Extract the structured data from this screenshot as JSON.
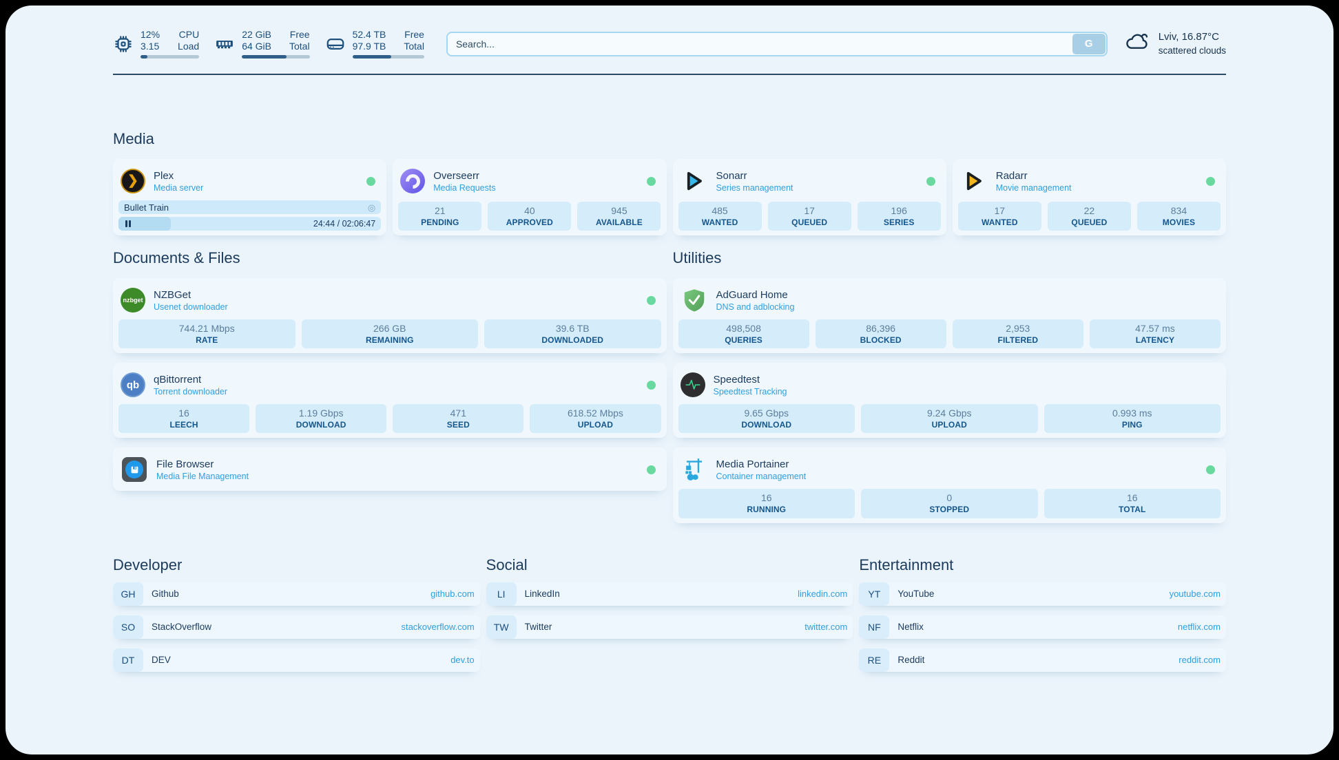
{
  "colors": {
    "accent": "#2f9ee2",
    "online_dot": "#69d9a0",
    "page_bg": "#ebf4fb",
    "card_bg": "#f1f8fd",
    "stat_pill_bg": "#d5ecfa"
  },
  "topbar": {
    "cpu": {
      "value_top": "12%",
      "value_bottom": "3.15",
      "label_top": "CPU",
      "label_bottom": "Load",
      "progress": 12
    },
    "ram": {
      "value_top": "22 GiB",
      "value_bottom": "64 GiB",
      "label_top": "Free",
      "label_bottom": "Total",
      "progress": 66
    },
    "disk": {
      "value_top": "52.4 TB",
      "value_bottom": "97.9 TB",
      "label_top": "Free",
      "label_bottom": "Total",
      "progress": 54
    },
    "search": {
      "placeholder": "Search...",
      "button": "G"
    },
    "weather": {
      "summary": "Lviv, 16.87°C",
      "condition": "scattered clouds"
    }
  },
  "media": {
    "title": "Media",
    "plex": {
      "name": "Plex",
      "desc": "Media server",
      "now_playing": "Bullet Train",
      "time": "24:44 / 02:06:47",
      "progress": 20
    },
    "overseerr": {
      "name": "Overseerr",
      "desc": "Media Requests",
      "stats": [
        {
          "value": "21",
          "label": "PENDING"
        },
        {
          "value": "40",
          "label": "APPROVED"
        },
        {
          "value": "945",
          "label": "AVAILABLE"
        }
      ]
    },
    "sonarr": {
      "name": "Sonarr",
      "desc": "Series management",
      "stats": [
        {
          "value": "485",
          "label": "WANTED"
        },
        {
          "value": "17",
          "label": "QUEUED"
        },
        {
          "value": "196",
          "label": "SERIES"
        }
      ]
    },
    "radarr": {
      "name": "Radarr",
      "desc": "Movie management",
      "stats": [
        {
          "value": "17",
          "label": "WANTED"
        },
        {
          "value": "22",
          "label": "QUEUED"
        },
        {
          "value": "834",
          "label": "MOVIES"
        }
      ]
    }
  },
  "documents": {
    "title": "Documents & Files",
    "nzbget": {
      "name": "NZBGet",
      "desc": "Usenet downloader",
      "icon_text": "nzbget",
      "stats": [
        {
          "value": "744.21 Mbps",
          "label": "RATE"
        },
        {
          "value": "266 GB",
          "label": "REMAINING"
        },
        {
          "value": "39.6 TB",
          "label": "DOWNLOADED"
        }
      ]
    },
    "qbittorrent": {
      "name": "qBittorrent",
      "desc": "Torrent downloader",
      "icon_text": "qb",
      "stats": [
        {
          "value": "16",
          "label": "LEECH"
        },
        {
          "value": "1.19 Gbps",
          "label": "DOWNLOAD"
        },
        {
          "value": "471",
          "label": "SEED"
        },
        {
          "value": "618.52 Mbps",
          "label": "UPLOAD"
        }
      ]
    },
    "filebrowser": {
      "name": "File Browser",
      "desc": "Media File Management"
    }
  },
  "utilities": {
    "title": "Utilities",
    "adguard": {
      "name": "AdGuard Home",
      "desc": "DNS and adblocking",
      "stats": [
        {
          "value": "498,508",
          "label": "QUERIES"
        },
        {
          "value": "86,396",
          "label": "BLOCKED"
        },
        {
          "value": "2,953",
          "label": "FILTERED"
        },
        {
          "value": "47.57 ms",
          "label": "LATENCY"
        }
      ]
    },
    "speedtest": {
      "name": "Speedtest",
      "desc": "Speedtest Tracking",
      "stats": [
        {
          "value": "9.65 Gbps",
          "label": "DOWNLOAD"
        },
        {
          "value": "9.24 Gbps",
          "label": "UPLOAD"
        },
        {
          "value": "0.993 ms",
          "label": "PING"
        }
      ]
    },
    "portainer": {
      "name": "Media Portainer",
      "desc": "Container management",
      "stats": [
        {
          "value": "16",
          "label": "RUNNING"
        },
        {
          "value": "0",
          "label": "STOPPED"
        },
        {
          "value": "16",
          "label": "TOTAL"
        }
      ]
    }
  },
  "bookmarks": {
    "developer": {
      "title": "Developer",
      "items": [
        {
          "abbr": "GH",
          "name": "Github",
          "url": "github.com"
        },
        {
          "abbr": "SO",
          "name": "StackOverflow",
          "url": "stackoverflow.com"
        },
        {
          "abbr": "DT",
          "name": "DEV",
          "url": "dev.to"
        }
      ]
    },
    "social": {
      "title": "Social",
      "items": [
        {
          "abbr": "LI",
          "name": "LinkedIn",
          "url": "linkedin.com"
        },
        {
          "abbr": "TW",
          "name": "Twitter",
          "url": "twitter.com"
        }
      ]
    },
    "entertainment": {
      "title": "Entertainment",
      "items": [
        {
          "abbr": "YT",
          "name": "YouTube",
          "url": "youtube.com"
        },
        {
          "abbr": "NF",
          "name": "Netflix",
          "url": "netflix.com"
        },
        {
          "abbr": "RE",
          "name": "Reddit",
          "url": "reddit.com"
        }
      ]
    }
  }
}
